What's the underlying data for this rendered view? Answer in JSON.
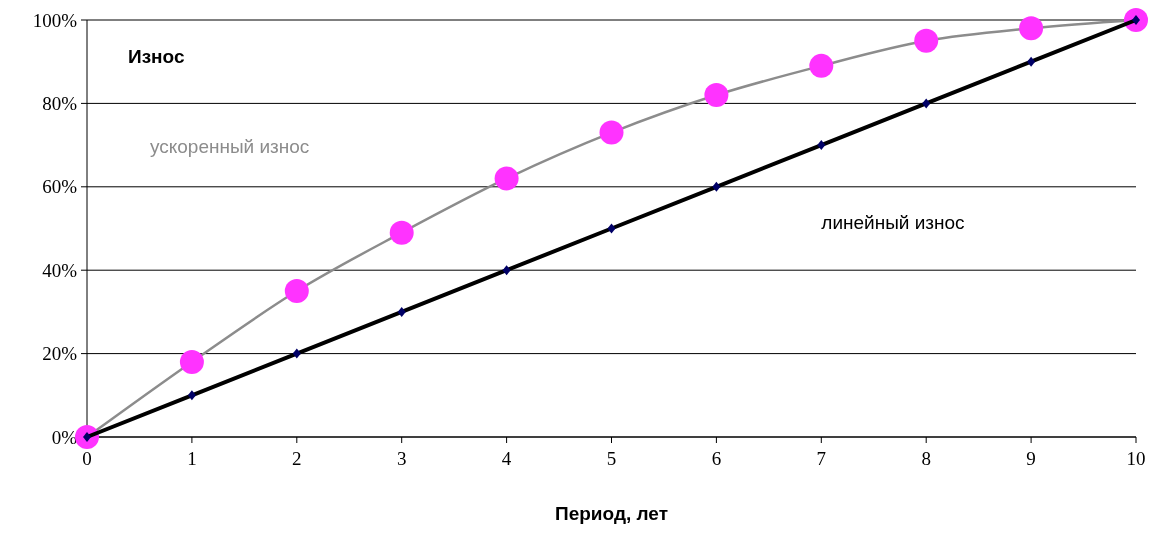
{
  "chart_data": {
    "type": "line",
    "title": "Износ",
    "xlabel": "Период, лет",
    "x": [
      0,
      1,
      2,
      3,
      4,
      5,
      6,
      7,
      8,
      9,
      10
    ],
    "series": [
      {
        "name": "ускоренный износ",
        "color": "#8c8c8c",
        "marker": "circle",
        "colors": [
          "#ff33ff",
          "#ff33ff",
          "#ff33ff",
          "#ff33ff",
          "#ff33ff",
          "#ff33ff",
          "#ff33ff",
          "#ff33ff",
          "#ff33ff",
          "#ff33ff",
          "#ff33ff"
        ],
        "values": [
          0,
          18,
          35,
          49,
          62,
          73,
          82,
          89,
          95,
          98,
          100
        ]
      },
      {
        "name": "линейный износ",
        "color": "#000000",
        "marker": "diamond",
        "colors": [
          "#000066",
          "#000066",
          "#000066",
          "#000066",
          "#000066",
          "#000066",
          "#000066",
          "#000066",
          "#000066",
          "#000066",
          "#000066"
        ],
        "values": [
          0,
          10,
          20,
          30,
          40,
          50,
          60,
          70,
          80,
          90,
          100
        ]
      }
    ],
    "xlim": [
      0,
      10
    ],
    "xticks": [
      0,
      1,
      2,
      3,
      4,
      5,
      6,
      7,
      8,
      9,
      10
    ],
    "ylim": [
      0,
      100
    ],
    "yticks": [
      {
        "value": 0,
        "label": "0%"
      },
      {
        "value": 20,
        "label": "20%"
      },
      {
        "value": 40,
        "label": "40%"
      },
      {
        "value": 60,
        "label": "60%"
      },
      {
        "value": 80,
        "label": "80%"
      },
      {
        "value": 100,
        "label": "100%"
      }
    ],
    "grid": "y",
    "legend": false,
    "line_style": "solid"
  }
}
